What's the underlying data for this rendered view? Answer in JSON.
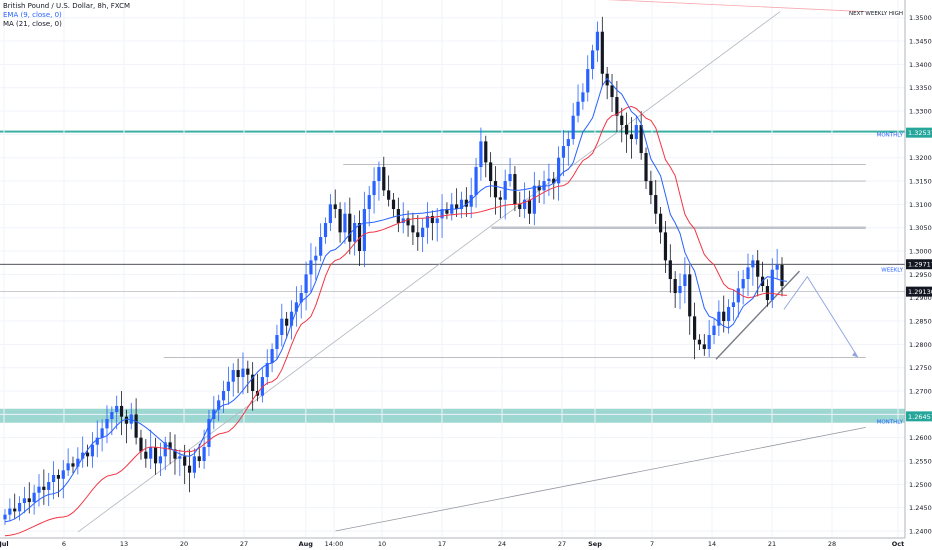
{
  "chart_data": {
    "type": "candlestick",
    "symbol": "British Pound / U.S. Dollar, 8h, FXCM",
    "indicators": [
      {
        "name": "EMA (9, close, 0)",
        "color": "#2962ff"
      },
      {
        "name": "MA (21, close, 0)",
        "color": "#f23645"
      }
    ],
    "y_ticks": [
      "1.24000",
      "1.24500",
      "1.25000",
      "1.25500",
      "1.26000",
      "1.26500",
      "1.27000",
      "1.27500",
      "1.28000",
      "1.28500",
      "1.29000",
      "1.29500",
      "1.30000",
      "1.30500",
      "1.31000",
      "1.31500",
      "1.32000",
      "1.32500",
      "1.33000",
      "1.33500",
      "1.34000",
      "1.34500",
      "1.35000"
    ],
    "ylim": [
      1.2385,
      1.3538
    ],
    "x_ticks": [
      {
        "label": "Jul",
        "bold": true,
        "pos": 0.0
      },
      {
        "label": "6",
        "pos": 0.0769
      },
      {
        "label": "13",
        "pos": 0.1538
      },
      {
        "label": "20",
        "pos": 0.2308
      },
      {
        "label": "27",
        "pos": 0.3077
      },
      {
        "label": "Aug",
        "bold": true,
        "pos": 0.3869
      },
      {
        "label": "14:00",
        "pos": 0.4231
      },
      {
        "label": "10",
        "pos": 0.4846
      },
      {
        "label": "17",
        "pos": 0.5615
      },
      {
        "label": "24",
        "pos": 0.6385
      },
      {
        "label": "27",
        "pos": 0.7154
      },
      {
        "label": "Sep",
        "bold": true,
        "pos": 0.7577
      },
      {
        "label": "7",
        "pos": 0.8308
      },
      {
        "label": "14",
        "pos": 0.9077
      },
      {
        "label": "21",
        "pos": 0.9846
      },
      {
        "label": "28",
        "pos": 1.0615
      },
      {
        "label": "Oct",
        "bold": true,
        "pos": 1.1462
      }
    ],
    "price_labels": [
      {
        "value": "1.32537",
        "price": 1.32537,
        "color": "#26a69a"
      },
      {
        "value": "1.29717",
        "price": 1.29717,
        "color": "#131722"
      },
      {
        "value": "1.29130",
        "price": 1.2913,
        "color": "#131722"
      },
      {
        "value": "1.26457",
        "price": 1.26457,
        "color": "#26a69a"
      }
    ],
    "level_labels": [
      {
        "text": "NEXT WEEKLY HIGH",
        "price": 1.351,
        "color": "#131722"
      },
      {
        "text": "MONTHLY",
        "price": 1.325,
        "color": "#2962ff"
      },
      {
        "text": "WEEKLY",
        "price": 1.296,
        "color": "#2962ff"
      },
      {
        "text": "MONTHLY",
        "price": 1.2635,
        "color": "#2962ff"
      }
    ],
    "closes": [
      1.2435,
      1.2448,
      1.2442,
      1.246,
      1.247,
      1.2462,
      1.2482,
      1.2495,
      1.2488,
      1.2505,
      1.252,
      1.2512,
      1.253,
      1.2545,
      1.2538,
      1.2555,
      1.2568,
      1.256,
      1.2585,
      1.26,
      1.262,
      1.264,
      1.2655,
      1.2668,
      1.2645,
      1.263,
      1.265,
      1.26,
      1.257,
      1.2555,
      1.258,
      1.2545,
      1.256,
      1.259,
      1.2575,
      1.2555,
      1.256,
      1.254,
      1.2525,
      1.256,
      1.255,
      1.258,
      1.264,
      1.266,
      1.268,
      1.27,
      1.272,
      1.2745,
      1.273,
      1.2748,
      1.2735,
      1.27,
      1.269,
      1.273,
      1.276,
      1.279,
      1.282,
      1.2855,
      1.284,
      1.287,
      1.289,
      1.291,
      1.295,
      1.298,
      1.299,
      1.303,
      1.306,
      1.31,
      1.309,
      1.304,
      1.308,
      1.302,
      1.306,
      1.3,
      1.309,
      1.312,
      1.315,
      1.318,
      1.313,
      1.311,
      1.309,
      1.306,
      1.307,
      1.3055,
      1.304,
      1.303,
      1.305,
      1.3075,
      1.306,
      1.307,
      1.309,
      1.308,
      1.31,
      1.309,
      1.311,
      1.3095,
      1.312,
      1.318,
      1.3235,
      1.319,
      1.315,
      1.3115,
      1.311,
      1.315,
      1.3165,
      1.31,
      1.309,
      1.311,
      1.308,
      1.314,
      1.313,
      1.315,
      1.3155,
      1.3145,
      1.32,
      1.3225,
      1.324,
      1.329,
      1.332,
      1.334,
      1.339,
      1.343,
      1.347,
      1.338,
      1.3355,
      1.333,
      1.329,
      1.327,
      1.325,
      1.324,
      1.327,
      1.321,
      1.315,
      1.312,
      1.308,
      1.304,
      1.298,
      1.294,
      1.291,
      1.2925,
      1.295,
      1.286,
      1.281,
      1.28,
      1.279,
      1.282,
      1.284,
      1.287,
      1.285,
      1.288,
      1.289,
      1.292,
      1.294,
      1.2965,
      1.298,
      1.2945,
      1.2925,
      1.2895,
      1.296,
      1.297,
      1.2925
    ],
    "ema_anchors": [
      [
        0,
        1.242
      ],
      [
        10,
        1.248
      ],
      [
        20,
        1.26
      ],
      [
        25,
        1.264
      ],
      [
        38,
        1.256
      ],
      [
        45,
        1.267
      ],
      [
        55,
        1.276
      ],
      [
        62,
        1.29
      ],
      [
        67,
        1.3
      ],
      [
        74,
        1.306
      ],
      [
        84,
        1.308
      ],
      [
        93,
        1.309
      ],
      [
        100,
        1.314
      ],
      [
        105,
        1.313
      ],
      [
        112,
        1.314
      ],
      [
        116,
        1.3175
      ],
      [
        120,
        1.327
      ],
      [
        124,
        1.337
      ],
      [
        126,
        1.3345
      ],
      [
        130,
        1.329
      ],
      [
        134,
        1.318
      ],
      [
        138,
        1.306
      ],
      [
        141,
        1.2975
      ],
      [
        145,
        1.286
      ],
      [
        149,
        1.2835
      ],
      [
        153,
        1.289
      ],
      [
        157,
        1.2945
      ],
      [
        161,
        1.2935
      ]
    ],
    "ma_anchors": [
      [
        0,
        1.239
      ],
      [
        12,
        1.243
      ],
      [
        22,
        1.252
      ],
      [
        30,
        1.258
      ],
      [
        38,
        1.257
      ],
      [
        45,
        1.261
      ],
      [
        55,
        1.272
      ],
      [
        62,
        1.285
      ],
      [
        68,
        1.298
      ],
      [
        75,
        1.304
      ],
      [
        85,
        1.307
      ],
      [
        95,
        1.308
      ],
      [
        105,
        1.31
      ],
      [
        115,
        1.314
      ],
      [
        120,
        1.32
      ],
      [
        125,
        1.329
      ],
      [
        129,
        1.331
      ],
      [
        133,
        1.328
      ],
      [
        137,
        1.318
      ],
      [
        141,
        1.306
      ],
      [
        145,
        1.298
      ],
      [
        149,
        1.292
      ],
      [
        153,
        1.29
      ],
      [
        157,
        1.291
      ],
      [
        161,
        1.2905
      ]
    ],
    "annotations": {
      "rising_trendline": [
        [
          0.1,
          1.2398
        ],
        [
          1.0,
          1.3513
        ]
      ],
      "lower_trendline": [
        [
          0.43,
          1.24
        ],
        [
          1.11,
          1.2622
        ]
      ],
      "upper_trendline_red": [
        [
          0.66,
          1.3548
        ],
        [
          1.11,
          1.3513
        ]
      ],
      "flag_support": [
        [
          0.918,
          1.2768
        ],
        [
          1.025,
          1.2957
        ]
      ],
      "projection_arrow": [
        [
          1.005,
          1.2875
        ],
        [
          1.035,
          1.2945
        ],
        [
          1.1,
          1.2772
        ]
      ],
      "resistance_lines": [
        {
          "price": 1.3185,
          "from": 0.44,
          "to": 1.11
        },
        {
          "price": 1.315,
          "from": 0.71,
          "to": 1.11
        },
        {
          "price": 1.305,
          "from": 0.63,
          "to": 1.11,
          "thick": true
        },
        {
          "price": 1.2772,
          "from": 0.21,
          "to": 1.11
        }
      ]
    }
  }
}
